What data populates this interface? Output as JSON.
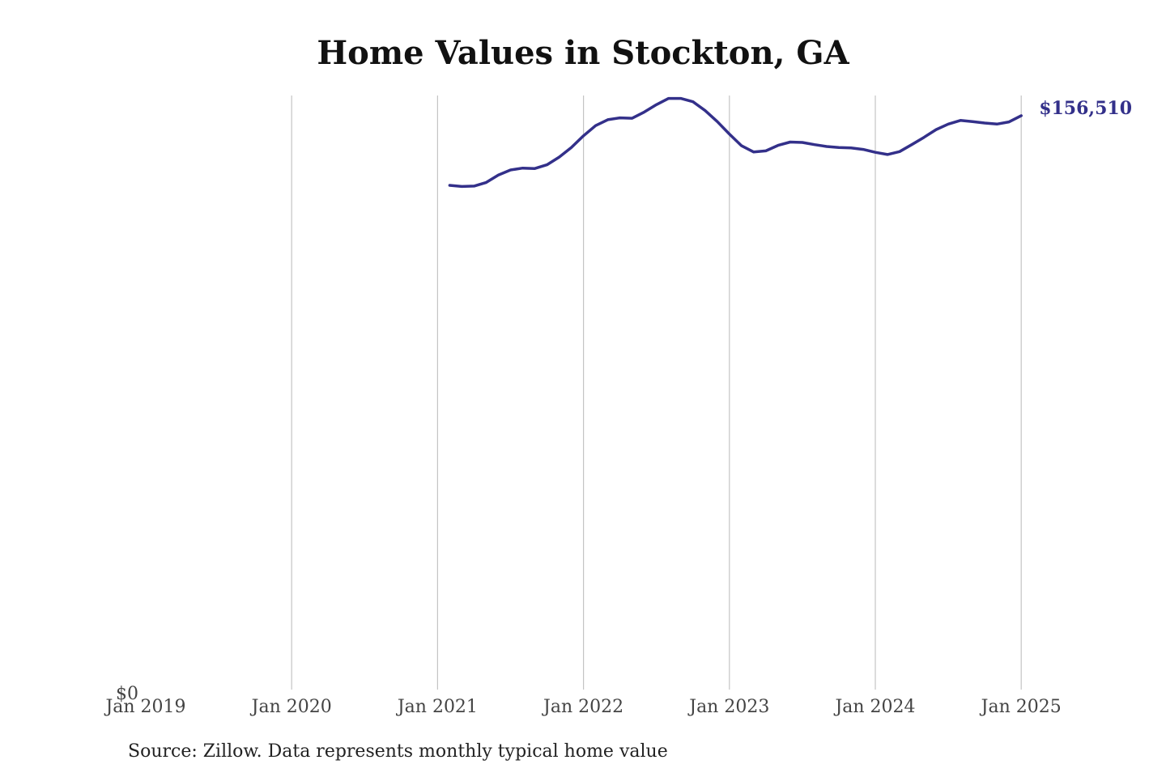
{
  "chart_data": {
    "type": "line",
    "title": "Home Values in Stockton, GA",
    "xlabel": "",
    "ylabel": "",
    "x_ticks": [
      "Jan 2019",
      "Jan 2020",
      "Jan 2021",
      "Jan 2022",
      "Jan 2023",
      "Jan 2024",
      "Jan 2025"
    ],
    "y_ticks": [
      "$0"
    ],
    "ylim": [
      0,
      162000
    ],
    "grid": "vertical",
    "line_color": "#33308a",
    "end_label": "$156,510",
    "series": [
      {
        "x": [
          "2021-02",
          "2021-03",
          "2021-04",
          "2021-05",
          "2021-06",
          "2021-07",
          "2021-08",
          "2021-09",
          "2021-10",
          "2021-11",
          "2021-12",
          "2022-01",
          "2022-02",
          "2022-03",
          "2022-04",
          "2022-05",
          "2022-06",
          "2022-07",
          "2022-08",
          "2022-09",
          "2022-10",
          "2022-11",
          "2022-12",
          "2023-01",
          "2023-02",
          "2023-03",
          "2023-04",
          "2023-05",
          "2023-06",
          "2023-07",
          "2023-08",
          "2023-09",
          "2023-10",
          "2023-11",
          "2023-12",
          "2024-01",
          "2024-02",
          "2024-03",
          "2024-04",
          "2024-05",
          "2024-06",
          "2024-07",
          "2024-08",
          "2024-09",
          "2024-10",
          "2024-11",
          "2024-12",
          "2025-01"
        ],
        "values": [
          137500,
          137200,
          137300,
          138300,
          140300,
          141700,
          142200,
          142100,
          143100,
          145200,
          147800,
          151000,
          153800,
          155400,
          155900,
          155800,
          157500,
          159500,
          161200,
          161200,
          160300,
          157900,
          154900,
          151500,
          148300,
          146600,
          146900,
          148400,
          149300,
          149200,
          148600,
          148100,
          147800,
          147700,
          147300,
          146500,
          145900,
          146700,
          148600,
          150600,
          152700,
          154200,
          155200,
          154900,
          154500,
          154200,
          154800,
          156510
        ]
      }
    ]
  },
  "source_note": "Source: Zillow. Data represents monthly typical home value"
}
